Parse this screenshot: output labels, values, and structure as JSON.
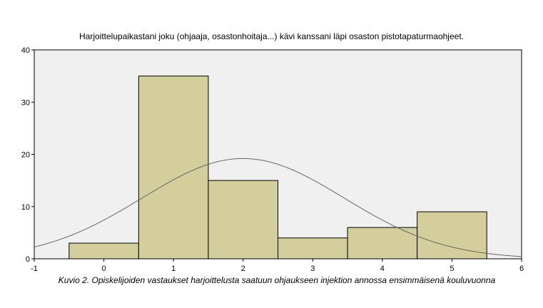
{
  "chart_data": {
    "type": "bar",
    "title": "Harjoittelupaikastani joku (ohjaaja, osastonhoitaja...) kävi kanssani läpi osaston pistotapaturmaohjeet.",
    "caption": "Kuvio 2. Opiskelijoiden vastaukset harjoittelusta saatuun ohjaukseen injektion annossa ensimmäisenä kouluvuonna",
    "xlabel": "",
    "ylabel": "",
    "categories": [
      0,
      1,
      2,
      3,
      4,
      5
    ],
    "values": [
      3,
      35,
      15,
      4,
      6,
      9
    ],
    "bin_width": 1,
    "xlim": [
      -1,
      6
    ],
    "ylim": [
      0,
      40
    ],
    "x_ticks": [
      -1,
      0,
      1,
      2,
      3,
      4,
      5,
      6
    ],
    "y_ticks": [
      0,
      10,
      20,
      30,
      40
    ],
    "normal_curve": {
      "peak_x": 2.0,
      "peak_y": 19.2,
      "sd": 1.45
    },
    "grid": false,
    "colors": {
      "bar_fill": "#d3ce9b",
      "bar_stroke": "#000000",
      "plot_background": "#f0f0f0",
      "curve": "#666666"
    }
  }
}
